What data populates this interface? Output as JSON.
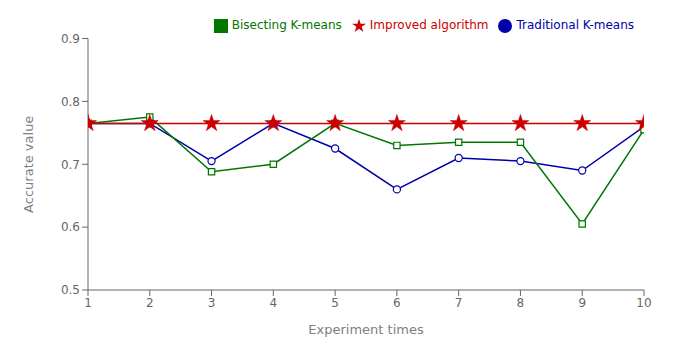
{
  "chart_data": {
    "type": "line",
    "x": [
      1,
      2,
      3,
      4,
      5,
      6,
      7,
      8,
      9,
      10
    ],
    "series": [
      {
        "name": "Traditional K-means",
        "color": "#0000aa",
        "marker": "circle",
        "values": [
          0.765,
          0.765,
          0.705,
          0.765,
          0.725,
          0.66,
          0.71,
          0.705,
          0.69,
          0.76
        ]
      },
      {
        "name": "Bisecting K-means",
        "color": "#007700",
        "marker": "square",
        "values": [
          0.765,
          0.775,
          0.688,
          0.7,
          0.765,
          0.73,
          0.735,
          0.735,
          0.605,
          0.755
        ]
      },
      {
        "name": "Improved algorithm",
        "color": "#cc0000",
        "marker": "star",
        "values": [
          0.765,
          0.765,
          0.765,
          0.765,
          0.765,
          0.765,
          0.765,
          0.765,
          0.765,
          0.765
        ]
      }
    ],
    "xlabel": "Experiment times",
    "ylabel": "Accurate value",
    "xlim": [
      1,
      10
    ],
    "ylim": [
      0.5,
      0.9
    ],
    "xticks": [
      1,
      2,
      3,
      4,
      5,
      6,
      7,
      8,
      9,
      10
    ],
    "yticks": [
      0.5,
      0.6,
      0.7,
      0.8,
      0.9
    ],
    "legend": "upper right",
    "grid": false
  }
}
